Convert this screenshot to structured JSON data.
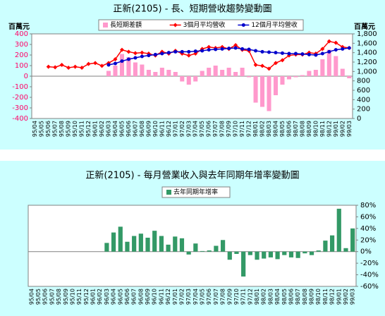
{
  "chart_data": [
    {
      "type": "combo",
      "title": "正新(2105) - 長、短期營收趨勢變動圖",
      "y_label": "百萬元",
      "y2_label": "百萬元",
      "categories": [
        "95/04",
        "95/05",
        "95/06",
        "95/07",
        "95/08",
        "95/09",
        "95/10",
        "95/11",
        "95/12",
        "96/01",
        "96/02",
        "96/03",
        "96/04",
        "96/05",
        "96/06",
        "96/07",
        "96/08",
        "96/09",
        "96/10",
        "96/11",
        "96/12",
        "97/01",
        "97/02",
        "97/03",
        "97/04",
        "97/05",
        "97/06",
        "97/07",
        "97/08",
        "97/09",
        "97/10",
        "97/11",
        "97/12",
        "98/01",
        "98/02",
        "98/03",
        "98/04",
        "98/05",
        "98/06",
        "98/07",
        "98/08",
        "98/09",
        "98/10",
        "98/11",
        "98/12",
        "99/01",
        "99/02",
        "99/03"
      ],
      "ylim": [
        -400,
        400
      ],
      "yticks": [
        -400,
        -300,
        -200,
        -100,
        0,
        100,
        200,
        300,
        400
      ],
      "ytick_color": "#ff0066",
      "y2lim": [
        0,
        1800
      ],
      "y2ticks": [
        0,
        200,
        400,
        600,
        800,
        {
          "value": 1000,
          "label": "1,000"
        },
        {
          "value": 1200,
          "label": "1,200"
        },
        {
          "value": 1400,
          "label": "1,400"
        },
        {
          "value": 1600,
          "label": "1,600"
        },
        {
          "value": 1800,
          "label": "1,800"
        }
      ],
      "series": [
        {
          "name": "長短期差額",
          "type": "bar",
          "color": "#ff99cc",
          "values": [
            null,
            null,
            null,
            null,
            null,
            null,
            null,
            null,
            null,
            null,
            null,
            50,
            100,
            210,
            180,
            130,
            110,
            60,
            40,
            80,
            60,
            40,
            -50,
            -80,
            -50,
            50,
            80,
            100,
            60,
            80,
            40,
            80,
            -10,
            -250,
            -290,
            -330,
            -180,
            -80,
            -30,
            -10,
            10,
            50,
            60,
            160,
            250,
            190,
            70,
            -20
          ]
        },
        {
          "name": "3個月平均營收",
          "type": "line",
          "axis": "y2",
          "color": "#ff0000",
          "marker": "diamond",
          "values": [
            null,
            null,
            1100,
            1090,
            1140,
            1080,
            1100,
            1080,
            1160,
            1180,
            1120,
            1180,
            1260,
            1460,
            1420,
            1390,
            1400,
            1380,
            1340,
            1420,
            1380,
            1440,
            1380,
            1340,
            1380,
            1480,
            1520,
            1500,
            1520,
            1480,
            1560,
            1460,
            1440,
            1140,
            1120,
            1060,
            1180,
            1240,
            1340,
            1360,
            1360,
            1400,
            1380,
            1480,
            1640,
            1610,
            1520,
            1500
          ]
        },
        {
          "name": "12個月平均營收",
          "type": "line",
          "axis": "y2",
          "color": "#0000cc",
          "marker": "circle",
          "values": [
            null,
            null,
            null,
            null,
            null,
            null,
            null,
            null,
            null,
            null,
            null,
            1140,
            1170,
            1220,
            1260,
            1290,
            1320,
            1340,
            1360,
            1380,
            1400,
            1420,
            1420,
            1420,
            1430,
            1440,
            1460,
            1470,
            1480,
            1490,
            1500,
            1480,
            1470,
            1440,
            1420,
            1410,
            1400,
            1390,
            1380,
            1380,
            1370,
            1360,
            1350,
            1380,
            1420,
            1460,
            1480,
            1500
          ]
        }
      ]
    },
    {
      "type": "bar",
      "title": "正新(2105) - 每月營業收入與去年同期年增率變動圖",
      "y_axis_side": "right",
      "categories": [
        "95/04",
        "95/05",
        "95/06",
        "95/07",
        "95/08",
        "95/09",
        "95/10",
        "95/11",
        "95/12",
        "96/01",
        "96/02",
        "96/03",
        "96/04",
        "96/05",
        "96/06",
        "96/07",
        "96/08",
        "96/09",
        "96/10",
        "96/11",
        "96/12",
        "97/01",
        "97/02",
        "97/03",
        "97/04",
        "97/05",
        "97/06",
        "97/07",
        "97/08",
        "97/09",
        "97/10",
        "97/11",
        "97/12",
        "98/01",
        "98/02",
        "98/03",
        "98/04",
        "98/05",
        "98/06",
        "98/07",
        "98/08",
        "98/09",
        "98/10",
        "98/11",
        "98/12",
        "99/01",
        "99/02",
        "99/03"
      ],
      "ylim": [
        -60,
        80
      ],
      "yticks": [
        {
          "value": -60,
          "label": "-60%"
        },
        {
          "value": -40,
          "label": "-40%"
        },
        {
          "value": -20,
          "label": "-20%"
        },
        {
          "value": 0,
          "label": "0%"
        },
        {
          "value": 20,
          "label": "20%"
        },
        {
          "value": 40,
          "label": "40%"
        },
        {
          "value": 60,
          "label": "60%"
        },
        {
          "value": 80,
          "label": "80%"
        }
      ],
      "series": [
        {
          "name": "去年同期年增率",
          "type": "bar",
          "color": "#339966",
          "values": [
            null,
            null,
            null,
            null,
            null,
            null,
            null,
            null,
            null,
            null,
            null,
            15,
            33,
            43,
            17,
            27,
            31,
            24,
            36,
            27,
            12,
            26,
            23,
            -5,
            14,
            1,
            2,
            10,
            20,
            -14,
            -4,
            -43,
            -6,
            -14,
            -12,
            -10,
            -13,
            -6,
            -10,
            -11,
            -3,
            -6,
            2,
            19,
            28,
            74,
            6,
            40
          ]
        }
      ]
    }
  ]
}
